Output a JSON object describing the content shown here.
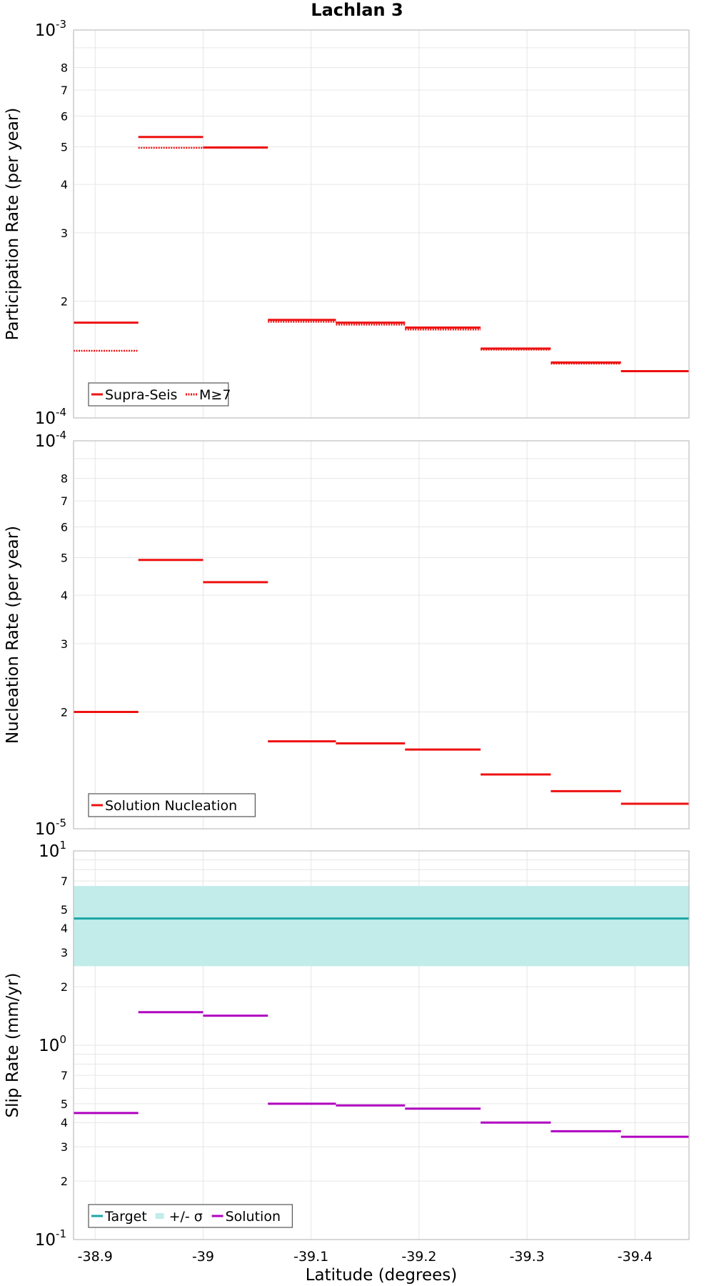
{
  "title": "Lachlan 3",
  "colors": {
    "solution_red": "#ee1111",
    "slip_solution": "#b000c0",
    "target": "#1aa6a6",
    "sigma_band": "#c2ecea",
    "grid": "#e6e6e6",
    "frame": "#bdbdbd"
  },
  "chart_data": [
    {
      "type": "line",
      "panel": "participation",
      "xlabel": "Latitude (degrees)",
      "ylabel": "Participation Rate (per year)",
      "y_scale": "log",
      "ylim": [
        0.0001,
        0.001
      ],
      "xlim": [
        -38.88,
        -39.45
      ],
      "x_reversed": true,
      "grid": true,
      "legend_position": "bottom-left",
      "y_tick_labels": {
        "major": [
          {
            "base": "10",
            "exp": "-4"
          },
          {
            "base": "10",
            "exp": "-3"
          }
        ],
        "minor": [
          "2",
          "3",
          "4",
          "5",
          "6",
          "7",
          "8"
        ]
      },
      "legend": [
        "Supra-Seis",
        "M≥7"
      ],
      "series": [
        {
          "name": "Supra-Seis",
          "style": "solid",
          "segments": [
            {
              "x": [
                -38.88,
                -38.94
              ],
              "y": 0.000176
            },
            {
              "x": [
                -38.94,
                -39.0
              ],
              "y": 0.00053
            },
            {
              "x": [
                -39.0,
                -39.06
              ],
              "y": 0.000498
            },
            {
              "x": [
                -39.06,
                -39.123
              ],
              "y": 0.000179
            },
            {
              "x": [
                -39.123,
                -39.187
              ],
              "y": 0.000176
            },
            {
              "x": [
                -39.187,
                -39.257
              ],
              "y": 0.000171
            },
            {
              "x": [
                -39.257,
                -39.322
              ],
              "y": 0.000151
            },
            {
              "x": [
                -39.322,
                -39.387
              ],
              "y": 0.000139
            },
            {
              "x": [
                -39.387,
                -39.45
              ],
              "y": 0.000132
            }
          ]
        },
        {
          "name": "M≥7",
          "style": "dotted",
          "segments": [
            {
              "x": [
                -38.88,
                -38.94
              ],
              "y": 0.000149
            },
            {
              "x": [
                -38.94,
                -39.0
              ],
              "y": 0.000497
            },
            {
              "x": [
                -39.0,
                -39.06
              ],
              "y": 0.000497
            },
            {
              "x": [
                -39.06,
                -39.123
              ],
              "y": 0.000177
            },
            {
              "x": [
                -39.123,
                -39.187
              ],
              "y": 0.000174
            },
            {
              "x": [
                -39.187,
                -39.257
              ],
              "y": 0.000169
            },
            {
              "x": [
                -39.257,
                -39.322
              ],
              "y": 0.00015
            },
            {
              "x": [
                -39.322,
                -39.387
              ],
              "y": 0.000138
            },
            {
              "x": [
                -39.387,
                -39.45
              ],
              "y": 0.000132
            }
          ]
        }
      ]
    },
    {
      "type": "line",
      "panel": "nucleation",
      "ylabel": "Nucleation Rate (per year)",
      "y_scale": "log",
      "ylim": [
        1e-05,
        0.0001
      ],
      "xlim": [
        -38.88,
        -39.45
      ],
      "x_reversed": true,
      "grid": true,
      "legend_position": "bottom-left",
      "y_tick_labels": {
        "major": [
          {
            "base": "10",
            "exp": "-5"
          },
          {
            "base": "10",
            "exp": "-4"
          }
        ],
        "minor": [
          "2",
          "3",
          "4",
          "5",
          "6",
          "7",
          "8"
        ]
      },
      "legend": [
        "Solution Nucleation"
      ],
      "series": [
        {
          "name": "Solution Nucleation",
          "style": "solid",
          "segments": [
            {
              "x": [
                -38.88,
                -38.94
              ],
              "y": 2e-05
            },
            {
              "x": [
                -38.94,
                -39.0
              ],
              "y": 4.93e-05
            },
            {
              "x": [
                -39.0,
                -39.06
              ],
              "y": 4.32e-05
            },
            {
              "x": [
                -39.06,
                -39.123
              ],
              "y": 1.68e-05
            },
            {
              "x": [
                -39.123,
                -39.187
              ],
              "y": 1.66e-05
            },
            {
              "x": [
                -39.187,
                -39.257
              ],
              "y": 1.6e-05
            },
            {
              "x": [
                -39.257,
                -39.322
              ],
              "y": 1.38e-05
            },
            {
              "x": [
                -39.322,
                -39.387
              ],
              "y": 1.25e-05
            },
            {
              "x": [
                -39.387,
                -39.45
              ],
              "y": 1.16e-05
            }
          ]
        }
      ]
    },
    {
      "type": "line",
      "panel": "slip",
      "ylabel": "Slip Rate (mm/yr)",
      "y_scale": "log",
      "ylim": [
        0.1,
        10
      ],
      "xlim": [
        -38.88,
        -39.45
      ],
      "x_reversed": true,
      "grid": true,
      "legend_position": "bottom-left",
      "y_tick_labels": {
        "major": [
          {
            "base": "10",
            "exp": "-1"
          },
          {
            "base": "10",
            "exp": "0"
          },
          {
            "base": "10",
            "exp": "1"
          }
        ],
        "minor": [
          "2",
          "3",
          "4",
          "5",
          "7"
        ]
      },
      "legend": [
        "Target",
        "+/- σ",
        "Solution"
      ],
      "band": {
        "name": "+/- σ",
        "y_low": 2.55,
        "y_high": 6.6
      },
      "series": [
        {
          "name": "Target",
          "style": "solid",
          "segments": [
            {
              "x": [
                -38.88,
                -39.45
              ],
              "y": 4.49
            }
          ]
        },
        {
          "name": "Solution",
          "style": "solid",
          "segments": [
            {
              "x": [
                -38.88,
                -38.94
              ],
              "y": 0.448
            },
            {
              "x": [
                -38.94,
                -39.0
              ],
              "y": 1.48
            },
            {
              "x": [
                -39.0,
                -39.06
              ],
              "y": 1.42
            },
            {
              "x": [
                -39.06,
                -39.123
              ],
              "y": 0.5
            },
            {
              "x": [
                -39.123,
                -39.187
              ],
              "y": 0.49
            },
            {
              "x": [
                -39.187,
                -39.257
              ],
              "y": 0.472
            },
            {
              "x": [
                -39.257,
                -39.322
              ],
              "y": 0.4
            },
            {
              "x": [
                -39.322,
                -39.387
              ],
              "y": 0.361
            },
            {
              "x": [
                -39.387,
                -39.45
              ],
              "y": 0.338
            }
          ]
        }
      ]
    }
  ],
  "x_ticks": [
    {
      "value": -38.9,
      "label": "-38.9"
    },
    {
      "value": -39.0,
      "label": "-39"
    },
    {
      "value": -39.1,
      "label": "-39.1"
    },
    {
      "value": -39.2,
      "label": "-39.2"
    },
    {
      "value": -39.3,
      "label": "-39.3"
    },
    {
      "value": -39.4,
      "label": "-39.4"
    }
  ]
}
